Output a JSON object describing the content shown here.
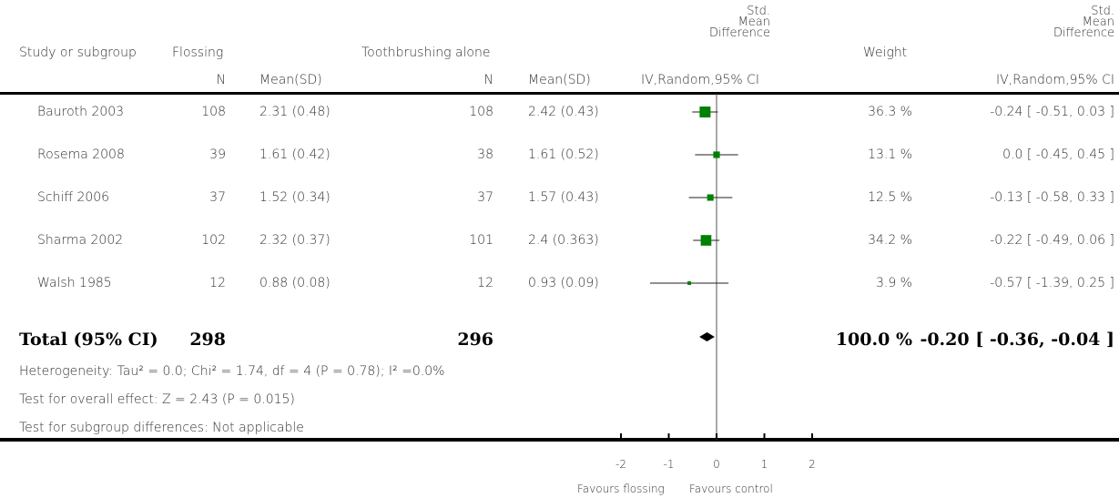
{
  "headers": {
    "study": "Study or subgroup",
    "group1": "Flossing",
    "group2": "Toothbrushing alone",
    "n1": "N",
    "mean1": "Mean(SD)",
    "n2": "N",
    "mean2": "Mean(SD)",
    "smd_plot": [
      "Std.",
      "Mean",
      "Difference"
    ],
    "smd_plot_method": "IV,Random,95% CI",
    "weight": "Weight",
    "smd_col": [
      "Std.",
      "Mean",
      "Difference"
    ],
    "smd_col_method": "IV,Random,95% CI"
  },
  "studies": [
    {
      "name": "Bauroth 2003",
      "n1": "108",
      "mean1": "2.31 (0.48)",
      "n2": "108",
      "mean2": "2.42 (0.43)",
      "weight": "36.3 %",
      "ci_text": "-0.24 [ -0.51, 0.03 ]"
    },
    {
      "name": "Rosema 2008",
      "n1": "39",
      "mean1": "1.61 (0.42)",
      "n2": "38",
      "mean2": "1.61 (0.52)",
      "weight": "13.1 %",
      "ci_text": "0.0 [ -0.45, 0.45 ]"
    },
    {
      "name": "Schiff 2006",
      "n1": "37",
      "mean1": "1.52 (0.34)",
      "n2": "37",
      "mean2": "1.57 (0.43)",
      "weight": "12.5 %",
      "ci_text": "-0.13 [ -0.58, 0.33 ]"
    },
    {
      "name": "Sharma 2002",
      "n1": "102",
      "mean1": "2.32 (0.37)",
      "n2": "101",
      "mean2": "2.4 (0.363)",
      "weight": "34.2 %",
      "ci_text": "-0.22 [ -0.49, 0.06 ]"
    },
    {
      "name": "Walsh 1985",
      "n1": "12",
      "mean1": "0.88 (0.08)",
      "n2": "12",
      "mean2": "0.93 (0.09)",
      "weight": "3.9 %",
      "ci_text": "-0.57 [ -1.39, 0.25 ]"
    }
  ],
  "total": {
    "label": "Total (95% CI)",
    "n1": "298",
    "n2": "296",
    "weight": "100.0 %",
    "ci_text": "-0.20 [ -0.36, -0.04 ]"
  },
  "notes": {
    "heterogeneity": "Heterogeneity: Tau² = 0.0; Chi² = 1.74, df = 4 (P = 0.78); I² =0.0%",
    "overall": "Test for overall effect: Z = 2.43 (P = 0.015)",
    "subgroup": "Test for subgroup differences: Not applicable"
  },
  "axis": {
    "ticks": [
      "-2",
      "-1",
      "0",
      "1",
      "2"
    ],
    "favours_left": "Favours flossing",
    "favours_right": "Favours control"
  },
  "chart_data": {
    "type": "forest",
    "xlim": [
      -2,
      2
    ],
    "xticks": [
      -2,
      -1,
      0,
      1,
      2
    ],
    "marker_color": "#008000",
    "studies": [
      {
        "name": "Bauroth 2003",
        "smd": -0.24,
        "lower": -0.51,
        "upper": 0.03,
        "weight": 36.3
      },
      {
        "name": "Rosema 2008",
        "smd": 0.0,
        "lower": -0.45,
        "upper": 0.45,
        "weight": 13.1
      },
      {
        "name": "Schiff 2006",
        "smd": -0.13,
        "lower": -0.58,
        "upper": 0.33,
        "weight": 12.5
      },
      {
        "name": "Sharma 2002",
        "smd": -0.22,
        "lower": -0.49,
        "upper": 0.06,
        "weight": 34.2
      },
      {
        "name": "Walsh 1985",
        "smd": -0.57,
        "lower": -1.39,
        "upper": 0.25,
        "weight": 3.9
      }
    ],
    "total": {
      "smd": -0.2,
      "lower": -0.36,
      "upper": -0.04,
      "weight": 100.0
    }
  }
}
